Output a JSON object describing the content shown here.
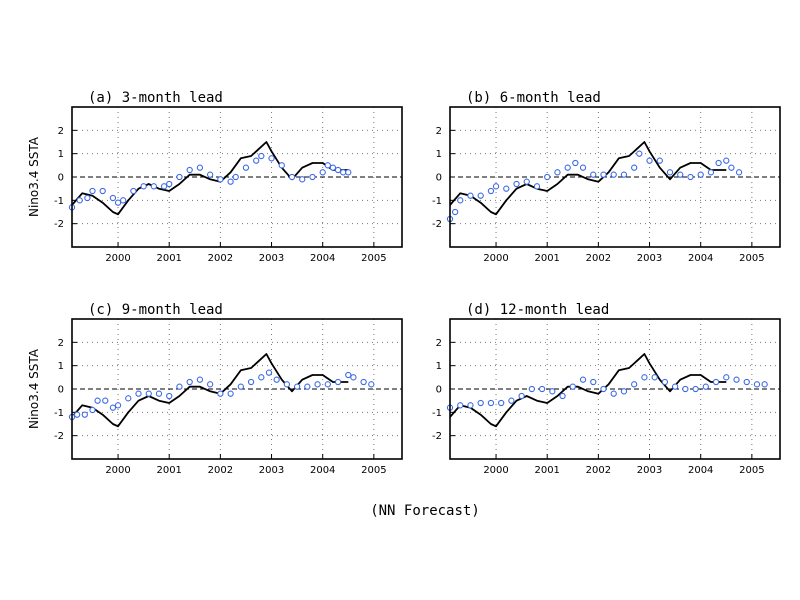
{
  "figure": {
    "footer": "(NN Forecast)"
  },
  "colors": {
    "observed": "#000000",
    "forecast": "#3d6ae6",
    "grid": "#777777"
  },
  "chart_data": [
    {
      "type": "line",
      "title": "(a) 3-month lead",
      "xlabel": "",
      "ylabel": "Nino3.4 SSTA",
      "xlim": [
        1999.1,
        2005.55
      ],
      "ylim": [
        -3,
        3
      ],
      "x_ticks": [
        2000,
        2001,
        2002,
        2003,
        2004,
        2005
      ],
      "x_tick_labels": [
        "2000",
        "2001",
        "2002",
        "2003",
        "2004",
        "2005"
      ],
      "y_ticks": [
        -2,
        -1,
        0,
        1,
        2
      ],
      "y_tick_labels": [
        "-2",
        "-1",
        "0",
        "1",
        "2"
      ],
      "grid": true,
      "series": [
        {
          "style": "line",
          "x": [
            1999.1,
            1999.3,
            1999.5,
            1999.7,
            1999.9,
            2000.0,
            2000.2,
            2000.4,
            2000.6,
            2000.8,
            2001.0,
            2001.2,
            2001.4,
            2001.6,
            2001.8,
            2002.0,
            2002.2,
            2002.4,
            2002.6,
            2002.8,
            2002.9,
            2003.0,
            2003.2,
            2003.4,
            2003.6,
            2003.8,
            2004.0,
            2004.2,
            2004.5
          ],
          "y": [
            -1.2,
            -0.7,
            -0.8,
            -1.1,
            -1.5,
            -1.6,
            -1.0,
            -0.5,
            -0.3,
            -0.5,
            -0.6,
            -0.3,
            0.1,
            0.1,
            -0.1,
            -0.2,
            0.2,
            0.8,
            0.9,
            1.3,
            1.5,
            1.1,
            0.4,
            -0.1,
            0.4,
            0.6,
            0.6,
            0.3,
            0.3
          ]
        },
        {
          "style": "markers",
          "x": [
            1999.1,
            1999.25,
            1999.4,
            1999.5,
            1999.7,
            1999.9,
            2000.0,
            2000.1,
            2000.3,
            2000.5,
            2000.7,
            2000.9,
            2001.0,
            2001.2,
            2001.4,
            2001.6,
            2001.8,
            2002.0,
            2002.2,
            2002.3,
            2002.5,
            2002.7,
            2002.8,
            2003.0,
            2003.2,
            2003.4,
            2003.6,
            2003.8,
            2004.0,
            2004.1,
            2004.2,
            2004.3,
            2004.4,
            2004.5
          ],
          "y": [
            -1.3,
            -1.0,
            -0.9,
            -0.6,
            -0.6,
            -0.9,
            -1.1,
            -1.0,
            -0.6,
            -0.4,
            -0.4,
            -0.4,
            -0.3,
            0.0,
            0.3,
            0.4,
            0.1,
            -0.1,
            -0.2,
            0.0,
            0.4,
            0.7,
            0.9,
            0.8,
            0.5,
            0.0,
            -0.1,
            0.0,
            0.2,
            0.5,
            0.4,
            0.3,
            0.2,
            0.2
          ]
        }
      ]
    },
    {
      "type": "line",
      "title": "(b) 6-month lead",
      "xlabel": "",
      "ylabel": "",
      "xlim": [
        1999.1,
        2005.55
      ],
      "ylim": [
        -3,
        3
      ],
      "x_ticks": [
        2000,
        2001,
        2002,
        2003,
        2004,
        2005
      ],
      "x_tick_labels": [
        "2000",
        "2001",
        "2002",
        "2003",
        "2004",
        "2005"
      ],
      "y_ticks": [
        -2,
        -1,
        0,
        1,
        2
      ],
      "y_tick_labels": [
        "-2",
        "-1",
        "0",
        "1",
        "2"
      ],
      "grid": true,
      "series": [
        {
          "style": "line",
          "x": [
            1999.1,
            1999.3,
            1999.5,
            1999.7,
            1999.9,
            2000.0,
            2000.2,
            2000.4,
            2000.6,
            2000.8,
            2001.0,
            2001.2,
            2001.4,
            2001.6,
            2001.8,
            2002.0,
            2002.2,
            2002.4,
            2002.6,
            2002.8,
            2002.9,
            2003.0,
            2003.2,
            2003.4,
            2003.6,
            2003.8,
            2004.0,
            2004.2,
            2004.5
          ],
          "y": [
            -1.2,
            -0.7,
            -0.8,
            -1.1,
            -1.5,
            -1.6,
            -1.0,
            -0.5,
            -0.3,
            -0.5,
            -0.6,
            -0.3,
            0.1,
            0.1,
            -0.1,
            -0.2,
            0.2,
            0.8,
            0.9,
            1.3,
            1.5,
            1.1,
            0.4,
            -0.1,
            0.4,
            0.6,
            0.6,
            0.3,
            0.3
          ]
        },
        {
          "style": "markers",
          "x": [
            1999.1,
            1999.2,
            1999.3,
            1999.5,
            1999.7,
            1999.9,
            2000.0,
            2000.2,
            2000.4,
            2000.6,
            2000.8,
            2001.0,
            2001.2,
            2001.4,
            2001.55,
            2001.7,
            2001.9,
            2002.1,
            2002.3,
            2002.5,
            2002.7,
            2002.8,
            2003.0,
            2003.2,
            2003.4,
            2003.6,
            2003.8,
            2004.0,
            2004.2,
            2004.35,
            2004.5,
            2004.6,
            2004.75
          ],
          "y": [
            -1.8,
            -1.5,
            -1.0,
            -0.8,
            -0.8,
            -0.6,
            -0.4,
            -0.5,
            -0.3,
            -0.2,
            -0.4,
            0.0,
            0.2,
            0.4,
            0.6,
            0.4,
            0.1,
            0.1,
            0.1,
            0.1,
            0.4,
            1.0,
            0.7,
            0.7,
            0.2,
            0.1,
            0.0,
            0.1,
            0.2,
            0.6,
            0.7,
            0.4,
            0.2
          ]
        }
      ]
    },
    {
      "type": "line",
      "title": "(c) 9-month lead",
      "xlabel": "",
      "ylabel": "Nino3.4 SSTA",
      "xlim": [
        1999.1,
        2005.55
      ],
      "ylim": [
        -3,
        3
      ],
      "x_ticks": [
        2000,
        2001,
        2002,
        2003,
        2004,
        2005
      ],
      "x_tick_labels": [
        "2000",
        "2001",
        "2002",
        "2003",
        "2004",
        "2005"
      ],
      "y_ticks": [
        -2,
        -1,
        0,
        1,
        2
      ],
      "y_tick_labels": [
        "-2",
        "-1",
        "0",
        "1",
        "2"
      ],
      "grid": true,
      "series": [
        {
          "style": "line",
          "x": [
            1999.1,
            1999.3,
            1999.5,
            1999.7,
            1999.9,
            2000.0,
            2000.2,
            2000.4,
            2000.6,
            2000.8,
            2001.0,
            2001.2,
            2001.4,
            2001.6,
            2001.8,
            2002.0,
            2002.2,
            2002.4,
            2002.6,
            2002.8,
            2002.9,
            2003.0,
            2003.2,
            2003.4,
            2003.6,
            2003.8,
            2004.0,
            2004.2,
            2004.5
          ],
          "y": [
            -1.2,
            -0.7,
            -0.8,
            -1.1,
            -1.5,
            -1.6,
            -1.0,
            -0.5,
            -0.3,
            -0.5,
            -0.6,
            -0.3,
            0.1,
            0.1,
            -0.1,
            -0.2,
            0.2,
            0.8,
            0.9,
            1.3,
            1.5,
            1.1,
            0.4,
            -0.1,
            0.4,
            0.6,
            0.6,
            0.3,
            0.3
          ]
        },
        {
          "style": "markers",
          "x": [
            1999.1,
            1999.2,
            1999.35,
            1999.5,
            1999.6,
            1999.75,
            1999.9,
            2000.0,
            2000.2,
            2000.4,
            2000.6,
            2000.8,
            2001.0,
            2001.2,
            2001.4,
            2001.6,
            2001.8,
            2002.0,
            2002.2,
            2002.4,
            2002.6,
            2002.8,
            2002.95,
            2003.1,
            2003.3,
            2003.5,
            2003.7,
            2003.9,
            2004.1,
            2004.3,
            2004.5,
            2004.6,
            2004.8,
            2004.95
          ],
          "y": [
            -1.2,
            -1.1,
            -1.1,
            -0.9,
            -0.5,
            -0.5,
            -0.8,
            -0.7,
            -0.4,
            -0.2,
            -0.2,
            -0.2,
            -0.3,
            0.1,
            0.3,
            0.4,
            0.2,
            -0.2,
            -0.2,
            0.1,
            0.3,
            0.5,
            0.7,
            0.4,
            0.2,
            0.1,
            0.1,
            0.2,
            0.2,
            0.3,
            0.6,
            0.5,
            0.3,
            0.2
          ]
        }
      ]
    },
    {
      "type": "line",
      "title": "(d) 12-month lead",
      "xlabel": "",
      "ylabel": "",
      "xlim": [
        1999.1,
        2005.55
      ],
      "ylim": [
        -3,
        3
      ],
      "x_ticks": [
        2000,
        2001,
        2002,
        2003,
        2004,
        2005
      ],
      "x_tick_labels": [
        "2000",
        "2001",
        "2002",
        "2003",
        "2004",
        "2005"
      ],
      "y_ticks": [
        -2,
        -1,
        0,
        1,
        2
      ],
      "y_tick_labels": [
        "-2",
        "-1",
        "0",
        "1",
        "2"
      ],
      "grid": true,
      "series": [
        {
          "style": "line",
          "x": [
            1999.1,
            1999.3,
            1999.5,
            1999.7,
            1999.9,
            2000.0,
            2000.2,
            2000.4,
            2000.6,
            2000.8,
            2001.0,
            2001.2,
            2001.4,
            2001.6,
            2001.8,
            2002.0,
            2002.2,
            2002.4,
            2002.6,
            2002.8,
            2002.9,
            2003.0,
            2003.2,
            2003.4,
            2003.6,
            2003.8,
            2004.0,
            2004.2,
            2004.5
          ],
          "y": [
            -1.2,
            -0.7,
            -0.8,
            -1.1,
            -1.5,
            -1.6,
            -1.0,
            -0.5,
            -0.3,
            -0.5,
            -0.6,
            -0.3,
            0.1,
            0.1,
            -0.1,
            -0.2,
            0.2,
            0.8,
            0.9,
            1.3,
            1.5,
            1.1,
            0.4,
            -0.1,
            0.4,
            0.6,
            0.6,
            0.3,
            0.3
          ]
        },
        {
          "style": "markers",
          "x": [
            1999.1,
            1999.3,
            1999.5,
            1999.7,
            1999.9,
            2000.1,
            2000.3,
            2000.5,
            2000.7,
            2000.9,
            2001.1,
            2001.3,
            2001.5,
            2001.7,
            2001.9,
            2002.1,
            2002.3,
            2002.5,
            2002.7,
            2002.9,
            2003.1,
            2003.3,
            2003.5,
            2003.7,
            2003.9,
            2004.1,
            2004.3,
            2004.5,
            2004.7,
            2004.9,
            2005.1,
            2005.25
          ],
          "y": [
            -0.8,
            -0.7,
            -0.7,
            -0.6,
            -0.6,
            -0.6,
            -0.5,
            -0.3,
            0.0,
            0.0,
            -0.1,
            -0.3,
            0.1,
            0.4,
            0.3,
            0.0,
            -0.2,
            -0.1,
            0.2,
            0.5,
            0.5,
            0.3,
            0.1,
            0.0,
            0.0,
            0.1,
            0.3,
            0.5,
            0.4,
            0.3,
            0.2,
            0.2
          ]
        }
      ]
    }
  ]
}
